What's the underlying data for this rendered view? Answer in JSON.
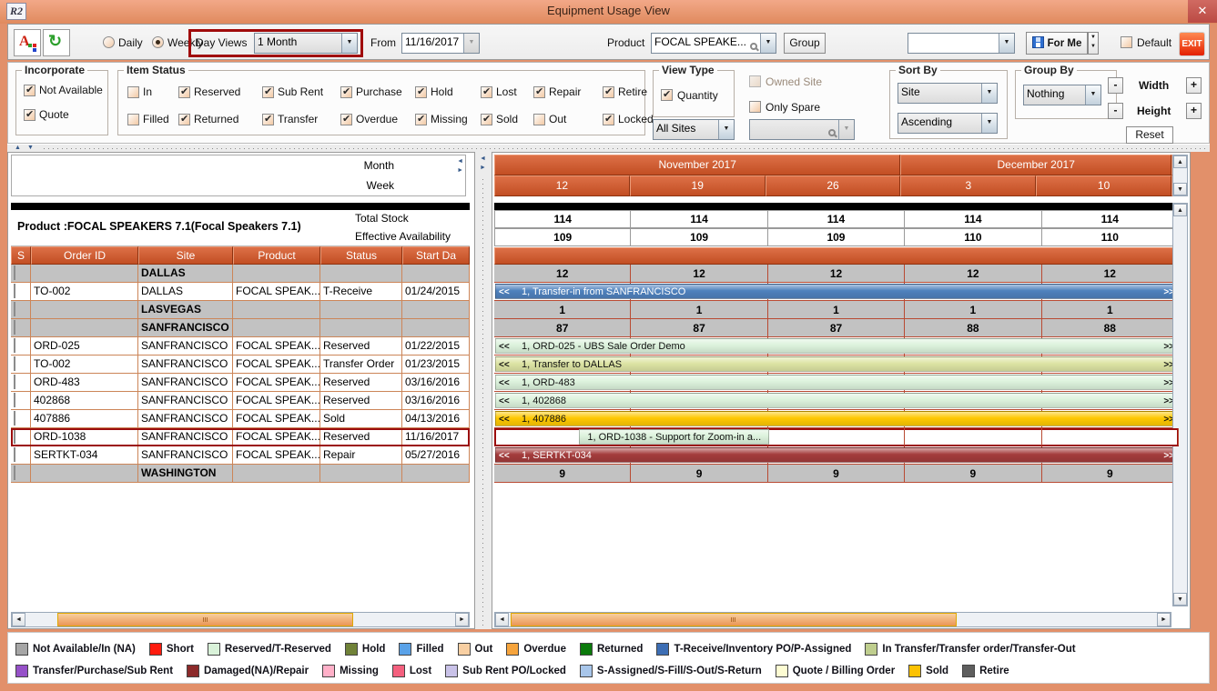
{
  "window": {
    "title": "Equipment Usage View",
    "app_icon": "R2",
    "close_glyph": "✕"
  },
  "toolbar": {
    "daily_label": "Daily",
    "daily_selected": false,
    "weekly_label": "Weekly",
    "weekly_selected": true,
    "day_views_label": "Day Views",
    "day_views_value": "1 Month",
    "from_label": "From",
    "from_value": "11/16/2017",
    "product_label": "Product",
    "product_value": "FOCAL SPEAKE...",
    "group_button": "Group",
    "saved_view_value": "",
    "for_me_button": "For Me",
    "default_label": "Default",
    "default_checked": false,
    "exit_button": "EXIT"
  },
  "filters": {
    "incorporate": {
      "title": "Incorporate",
      "items": [
        {
          "label": "Not Available",
          "checked": true
        },
        {
          "label": "Quote",
          "checked": true
        }
      ]
    },
    "item_status": {
      "title": "Item Status",
      "rows": [
        [
          {
            "label": "In",
            "checked": false
          },
          {
            "label": "Reserved",
            "checked": true
          },
          {
            "label": "Sub Rent",
            "checked": true
          },
          {
            "label": "Purchase",
            "checked": true
          },
          {
            "label": "Hold",
            "checked": true
          },
          {
            "label": "Lost",
            "checked": true
          },
          {
            "label": "Repair",
            "checked": true
          },
          {
            "label": "Retire",
            "checked": true
          }
        ],
        [
          {
            "label": "Filled",
            "checked": false
          },
          {
            "label": "Returned",
            "checked": true
          },
          {
            "label": "Transfer",
            "checked": true
          },
          {
            "label": "Overdue",
            "checked": true
          },
          {
            "label": "Missing",
            "checked": true
          },
          {
            "label": "Sold",
            "checked": true
          },
          {
            "label": "Out",
            "checked": false
          },
          {
            "label": "Locked",
            "checked": true
          }
        ]
      ]
    },
    "view_type": {
      "title": "View Type",
      "quantity_label": "Quantity",
      "quantity_checked": true,
      "sites_value": "All Sites"
    },
    "owned_site_label": "Owned Site",
    "owned_site_checked": false,
    "only_spare_label": "Only Spare",
    "only_spare_checked": false,
    "spare_value": "",
    "sort_by": {
      "title": "Sort By",
      "field_value": "Site",
      "direction_value": "Ascending"
    },
    "group_by": {
      "title": "Group By",
      "value": "Nothing"
    },
    "size_controls": {
      "minus": "-",
      "plus": "+",
      "width_label": "Width",
      "height_label": "Height",
      "reset_label": "Reset"
    }
  },
  "grid": {
    "month_label": "Month",
    "week_label": "Week",
    "product_info": "Product :FOCAL SPEAKERS 7.1(Focal Speakers 7.1)",
    "total_stock_label": "Total Stock",
    "effective_availability_label": "Effective Availability",
    "columns": [
      "S",
      "Order ID",
      "Site",
      "Product",
      "Status",
      "Start Da"
    ],
    "rows": [
      {
        "type": "group",
        "site": "DALLAS",
        "values": [
          "12",
          "12",
          "12",
          "12",
          "12"
        ]
      },
      {
        "type": "item",
        "order_id": "TO-002",
        "site": "DALLAS",
        "product": "FOCAL SPEAK...",
        "status": "T-Receive",
        "start_date": "01/24/2015",
        "bar": {
          "color": "blue",
          "text": "1, Transfer-in from SANFRANCISCO",
          "full": true
        }
      },
      {
        "type": "group",
        "site": "LASVEGAS",
        "values": [
          "1",
          "1",
          "1",
          "1",
          "1"
        ]
      },
      {
        "type": "group",
        "site": "SANFRANCISCO",
        "values": [
          "87",
          "87",
          "87",
          "88",
          "88"
        ]
      },
      {
        "type": "item",
        "order_id": "ORD-025",
        "site": "SANFRANCISCO",
        "product": "FOCAL SPEAK...",
        "status": "Reserved",
        "start_date": "01/22/2015",
        "bar": {
          "color": "palegreen",
          "text": "1, ORD-025 - UBS Sale Order Demo",
          "full": true
        }
      },
      {
        "type": "item",
        "order_id": "TO-002",
        "site": "SANFRANCISCO",
        "product": "FOCAL SPEAK...",
        "status": "Transfer Order",
        "start_date": "01/23/2015",
        "bar": {
          "color": "yellowgreen",
          "text": "1, Transfer to DALLAS",
          "full": true
        }
      },
      {
        "type": "item",
        "order_id": "ORD-483",
        "site": "SANFRANCISCO",
        "product": "FOCAL SPEAK...",
        "status": "Reserved",
        "start_date": "03/16/2016",
        "bar": {
          "color": "palegreen",
          "text": "1, ORD-483",
          "full": true
        }
      },
      {
        "type": "item",
        "order_id": "402868",
        "site": "SANFRANCISCO",
        "product": "FOCAL SPEAK...",
        "status": "Reserved",
        "start_date": "03/16/2016",
        "bar": {
          "color": "palegreen",
          "text": "1, 402868",
          "full": true
        }
      },
      {
        "type": "item",
        "order_id": "407886",
        "site": "SANFRANCISCO",
        "product": "FOCAL SPEAK...",
        "status": "Sold",
        "start_date": "04/13/2016",
        "bar": {
          "color": "gold",
          "text": "1, 407886",
          "full": true
        }
      },
      {
        "type": "item",
        "selected": true,
        "order_id": "ORD-1038",
        "site": "SANFRANCISCO",
        "product": "FOCAL SPEAK...",
        "status": "Reserved",
        "start_date": "11/16/2017",
        "bar": {
          "color": "palegreen",
          "text": "1, ORD-1038 - Support for Zoom-in a...",
          "full": false,
          "left_pct": 12.4,
          "width_pct": 27.8
        }
      },
      {
        "type": "item",
        "order_id": "SERTKT-034",
        "site": "SANFRANCISCO",
        "product": "FOCAL SPEAK...",
        "status": "Repair",
        "start_date": "05/27/2016",
        "bar": {
          "color": "darkred",
          "text": "1, SERTKT-034",
          "full": true
        }
      },
      {
        "type": "group",
        "site": "WASHINGTON",
        "values": [
          "9",
          "9",
          "9",
          "9",
          "9"
        ]
      }
    ]
  },
  "timeline": {
    "months": [
      {
        "label": "November 2017",
        "span": 3
      },
      {
        "label": "December 2017",
        "span": 2
      }
    ],
    "weeks": [
      "12",
      "19",
      "26",
      "3",
      "10"
    ],
    "total_stock": [
      "114",
      "114",
      "114",
      "114",
      "114"
    ],
    "effective_availability": [
      "109",
      "109",
      "109",
      "110",
      "110"
    ],
    "left_marker": "<<",
    "right_marker": ">>",
    "bar_colors": {
      "blue": "#4f81bd",
      "palegreen": "#dcf2dc",
      "yellowgreen": "#dde4a4",
      "gold": "#fec802",
      "darkred": "#a43c3c"
    },
    "bar_text_light": [
      "blue",
      "darkred"
    ]
  },
  "legend": {
    "rows": [
      [
        {
          "label": "Not Available/In (NA)",
          "color": "#a6a6a6"
        },
        {
          "label": "Short",
          "color": "#fe1b0e"
        },
        {
          "label": "Reserved/T-Reserved",
          "color": "#d9f2d9"
        },
        {
          "label": "Hold",
          "color": "#708238"
        },
        {
          "label": "Filled",
          "color": "#5aa2e8"
        },
        {
          "label": "Out",
          "color": "#f8cfa2"
        },
        {
          "label": "Overdue",
          "color": "#f6a43c"
        },
        {
          "label": "Returned",
          "color": "#0b7a0b"
        },
        {
          "label": "T-Receive/Inventory PO/P-Assigned",
          "color": "#3d6eb4"
        },
        {
          "label": "In Transfer/Transfer order/Transfer-Out",
          "color": "#bfce8e"
        }
      ],
      [
        {
          "label": "Transfer/Purchase/Sub Rent",
          "color": "#9651c8"
        },
        {
          "label": "Damaged(NA)/Repair",
          "color": "#8c2a2a"
        },
        {
          "label": "Missing",
          "color": "#ffb0c8"
        },
        {
          "label": "Lost",
          "color": "#f4607e"
        },
        {
          "label": "Sub Rent PO/Locked",
          "color": "#c9c2e8"
        },
        {
          "label": "S-Assigned/S-Fill/S-Out/S-Return",
          "color": "#a8c6ea"
        },
        {
          "label": "Quote / Billing Order",
          "color": "#fdfcd2"
        },
        {
          "label": "Sold",
          "color": "#fcc203"
        },
        {
          "label": "Retire",
          "color": "#5e5e5e"
        }
      ]
    ]
  }
}
